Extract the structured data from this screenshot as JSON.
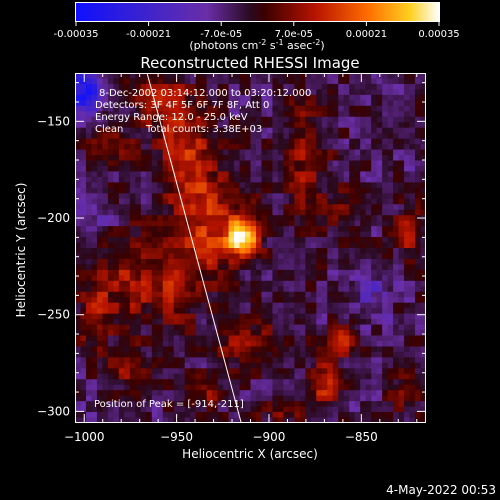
{
  "chart_data": {
    "type": "heatmap",
    "title": "Reconstructed RHESSI Image",
    "xlabel": "Heliocentric X (arcsec)",
    "ylabel": "Heliocentric Y (arcsec)",
    "xlim": [
      -1005,
      -815
    ],
    "ylim": [
      -306,
      -125
    ],
    "xticks": [
      -1000,
      -950,
      -900,
      -850
    ],
    "yticks": [
      -150,
      -200,
      -250,
      -300
    ],
    "colorbar": {
      "ticks": [
        "-0.00035",
        "-0.00021",
        "-7.0e-05",
        "7.0e-05",
        "0.00021",
        "0.00035"
      ],
      "min": -0.00035,
      "max": 0.00035,
      "label_pre": "(photons cm",
      "label_sup1": "-2",
      "label_mid": " s",
      "label_sup2": "-1",
      "label_post": " asec",
      "label_sup3": "-2",
      "label_end": ")"
    },
    "annotations": {
      "time_range": "8-Dec-2002 03:14:12.000 to 03:20:12.000",
      "detectors": "Detectors: 3F 4F 5F 6F 7F 8F, Att 0",
      "energy": "Energy Range: 12.0 - 25.0 keV",
      "algorithm": "Clean",
      "counts": "Total counts: 3.38E+03",
      "peak": "Position of Peak = [-914,-211]"
    },
    "peak": {
      "x": -914,
      "y": -211
    },
    "limb_line": [
      [
        -966,
        -125
      ],
      [
        -915,
        -306
      ]
    ],
    "sources": [
      {
        "x": -914,
        "y": -210,
        "amp": 0.00035,
        "sx": 6,
        "sy": 6
      },
      {
        "x": -930,
        "y": -205,
        "amp": 0.00016,
        "sx": 14,
        "sy": 20
      },
      {
        "x": -945,
        "y": -168,
        "amp": 0.00015,
        "sx": 10,
        "sy": 22
      },
      {
        "x": -960,
        "y": -140,
        "amp": 0.00012,
        "sx": 10,
        "sy": 10
      },
      {
        "x": -985,
        "y": -160,
        "amp": 0.00011,
        "sx": 9,
        "sy": 7
      },
      {
        "x": -975,
        "y": -232,
        "amp": 0.00013,
        "sx": 12,
        "sy": 16
      },
      {
        "x": -995,
        "y": -250,
        "amp": 0.00012,
        "sx": 6,
        "sy": 14
      },
      {
        "x": -950,
        "y": -235,
        "amp": 0.00012,
        "sx": 8,
        "sy": 14
      },
      {
        "x": -910,
        "y": -265,
        "amp": 0.00013,
        "sx": 14,
        "sy": 8
      },
      {
        "x": -880,
        "y": -170,
        "amp": 0.00012,
        "sx": 8,
        "sy": 22
      },
      {
        "x": -860,
        "y": -195,
        "amp": 9e-05,
        "sx": 8,
        "sy": 8
      },
      {
        "x": -870,
        "y": -285,
        "amp": 0.00018,
        "sx": 6,
        "sy": 8
      },
      {
        "x": -860,
        "y": -263,
        "amp": 0.00014,
        "sx": 6,
        "sy": 6
      },
      {
        "x": -825,
        "y": -210,
        "amp": 0.00012,
        "sx": 5,
        "sy": 10
      },
      {
        "x": -825,
        "y": -290,
        "amp": 0.0001,
        "sx": 6,
        "sy": 8
      },
      {
        "x": -975,
        "y": -278,
        "amp": 0.0001,
        "sx": 10,
        "sy": 8
      },
      {
        "x": -935,
        "y": -292,
        "amp": 9e-05,
        "sx": 10,
        "sy": 6
      },
      {
        "x": -890,
        "y": -300,
        "amp": 0.0001,
        "sx": 10,
        "sy": 5
      },
      {
        "x": -1000,
        "y": -135,
        "amp": -0.00026,
        "sx": 8,
        "sy": 8
      },
      {
        "x": -995,
        "y": -200,
        "amp": -5e-05,
        "sx": 8,
        "sy": 8
      },
      {
        "x": -845,
        "y": -240,
        "amp": -8e-05,
        "sx": 8,
        "sy": 8
      }
    ]
  },
  "footer": {
    "date": "4-May-2022 00:53"
  }
}
